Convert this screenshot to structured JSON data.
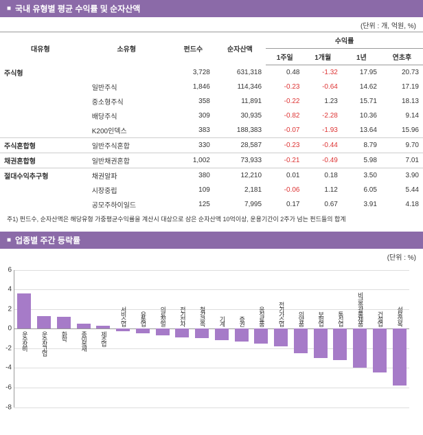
{
  "table_section": {
    "title": "국내 유형별 평균 수익률 및 순자산액",
    "unit": "(단위 : 개, 억원, %)",
    "headers": {
      "major": "대유형",
      "minor": "소유형",
      "funds": "펀드수",
      "nav": "순자산액",
      "returns": "수익률",
      "r1w": "1주일",
      "r1m": "1개월",
      "r1y": "1년",
      "rytd": "연초후"
    },
    "rows": [
      {
        "cat": "주식형",
        "sub": "",
        "funds": "3,728",
        "nav": "631,318",
        "r1w": "0.48",
        "r1m": "-1.32",
        "r1y": "17.95",
        "rytd": "20.73",
        "divider": false
      },
      {
        "cat": "",
        "sub": "일반주식",
        "funds": "1,846",
        "nav": "114,346",
        "r1w": "-0.23",
        "r1m": "-0.64",
        "r1y": "14.62",
        "rytd": "17.19",
        "divider": false
      },
      {
        "cat": "",
        "sub": "중소형주식",
        "funds": "358",
        "nav": "11,891",
        "r1w": "-0.22",
        "r1m": "1.23",
        "r1y": "15.71",
        "rytd": "18.13",
        "divider": false
      },
      {
        "cat": "",
        "sub": "배당주식",
        "funds": "309",
        "nav": "30,935",
        "r1w": "-0.82",
        "r1m": "-2.28",
        "r1y": "10.36",
        "rytd": "9.14",
        "divider": false
      },
      {
        "cat": "",
        "sub": "K200인덱스",
        "funds": "383",
        "nav": "188,383",
        "r1w": "-0.07",
        "r1m": "-1.93",
        "r1y": "13.64",
        "rytd": "15.96",
        "divider": false
      },
      {
        "cat": "주식혼합형",
        "sub": "일반주식혼합",
        "funds": "330",
        "nav": "28,587",
        "r1w": "-0.23",
        "r1m": "-0.44",
        "r1y": "8.79",
        "rytd": "9.70",
        "divider": true
      },
      {
        "cat": "채권혼합형",
        "sub": "일반채권혼합",
        "funds": "1,002",
        "nav": "73,933",
        "r1w": "-0.21",
        "r1m": "-0.49",
        "r1y": "5.98",
        "rytd": "7.01",
        "divider": true
      },
      {
        "cat": "절대수익추구형",
        "sub": "채권알파",
        "funds": "380",
        "nav": "12,210",
        "r1w": "0.01",
        "r1m": "0.18",
        "r1y": "3.50",
        "rytd": "3.90",
        "divider": true
      },
      {
        "cat": "",
        "sub": "시장중립",
        "funds": "109",
        "nav": "2,181",
        "r1w": "-0.06",
        "r1m": "1.12",
        "r1y": "6.05",
        "rytd": "5.44",
        "divider": false
      },
      {
        "cat": "",
        "sub": "공모주하이일드",
        "funds": "125",
        "nav": "7,995",
        "r1w": "0.17",
        "r1m": "0.67",
        "r1y": "3.91",
        "rytd": "4.18",
        "divider": false
      }
    ],
    "footnote": "주1) 펀드수, 순자산액은 해당유형 가중평균수익률을 계산시 대상으로 삼은 순자산액 10억이상, 운용기간이 2주가 넘는 펀드들의 합계"
  },
  "chart_section": {
    "title": "업종별 주간 등락률",
    "unit": "(단위 : %)",
    "ymin": -8,
    "ymax": 6,
    "ystep": 2,
    "bar_color": "#a67bc8",
    "grid_color": "#dddddd",
    "axis_color": "#999999",
    "data": [
      {
        "label": "운수장비",
        "value": 3.6
      },
      {
        "label": "운수창고업",
        "value": 1.3
      },
      {
        "label": "화학",
        "value": 1.2
      },
      {
        "label": "종이목재",
        "value": 0.5
      },
      {
        "label": "제조업",
        "value": 0.3
      },
      {
        "label": "서비스업",
        "value": -0.3
      },
      {
        "label": "유통업",
        "value": -0.5
      },
      {
        "label": "의료정밀",
        "value": -0.7
      },
      {
        "label": "전기전자",
        "value": -0.9
      },
      {
        "label": "철강금속",
        "value": -1.0
      },
      {
        "label": "기계",
        "value": -1.2
      },
      {
        "label": "증권",
        "value": -1.3
      },
      {
        "label": "음식료품",
        "value": -1.5
      },
      {
        "label": "전기가스업",
        "value": -1.8
      },
      {
        "label": "의약품",
        "value": -2.5
      },
      {
        "label": "보험업",
        "value": -3.0
      },
      {
        "label": "통신업",
        "value": -3.2
      },
      {
        "label": "비금속광물제품",
        "value": -4.0
      },
      {
        "label": "건설업",
        "value": -4.5
      },
      {
        "label": "섬유의복",
        "value": -5.8
      }
    ]
  }
}
